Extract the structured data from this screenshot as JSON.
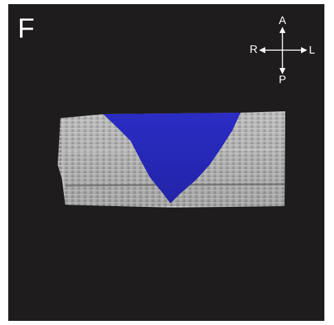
{
  "panel_label": "F",
  "orientation": {
    "anterior": "A",
    "posterior": "P",
    "right": "R",
    "left": "L"
  }
}
